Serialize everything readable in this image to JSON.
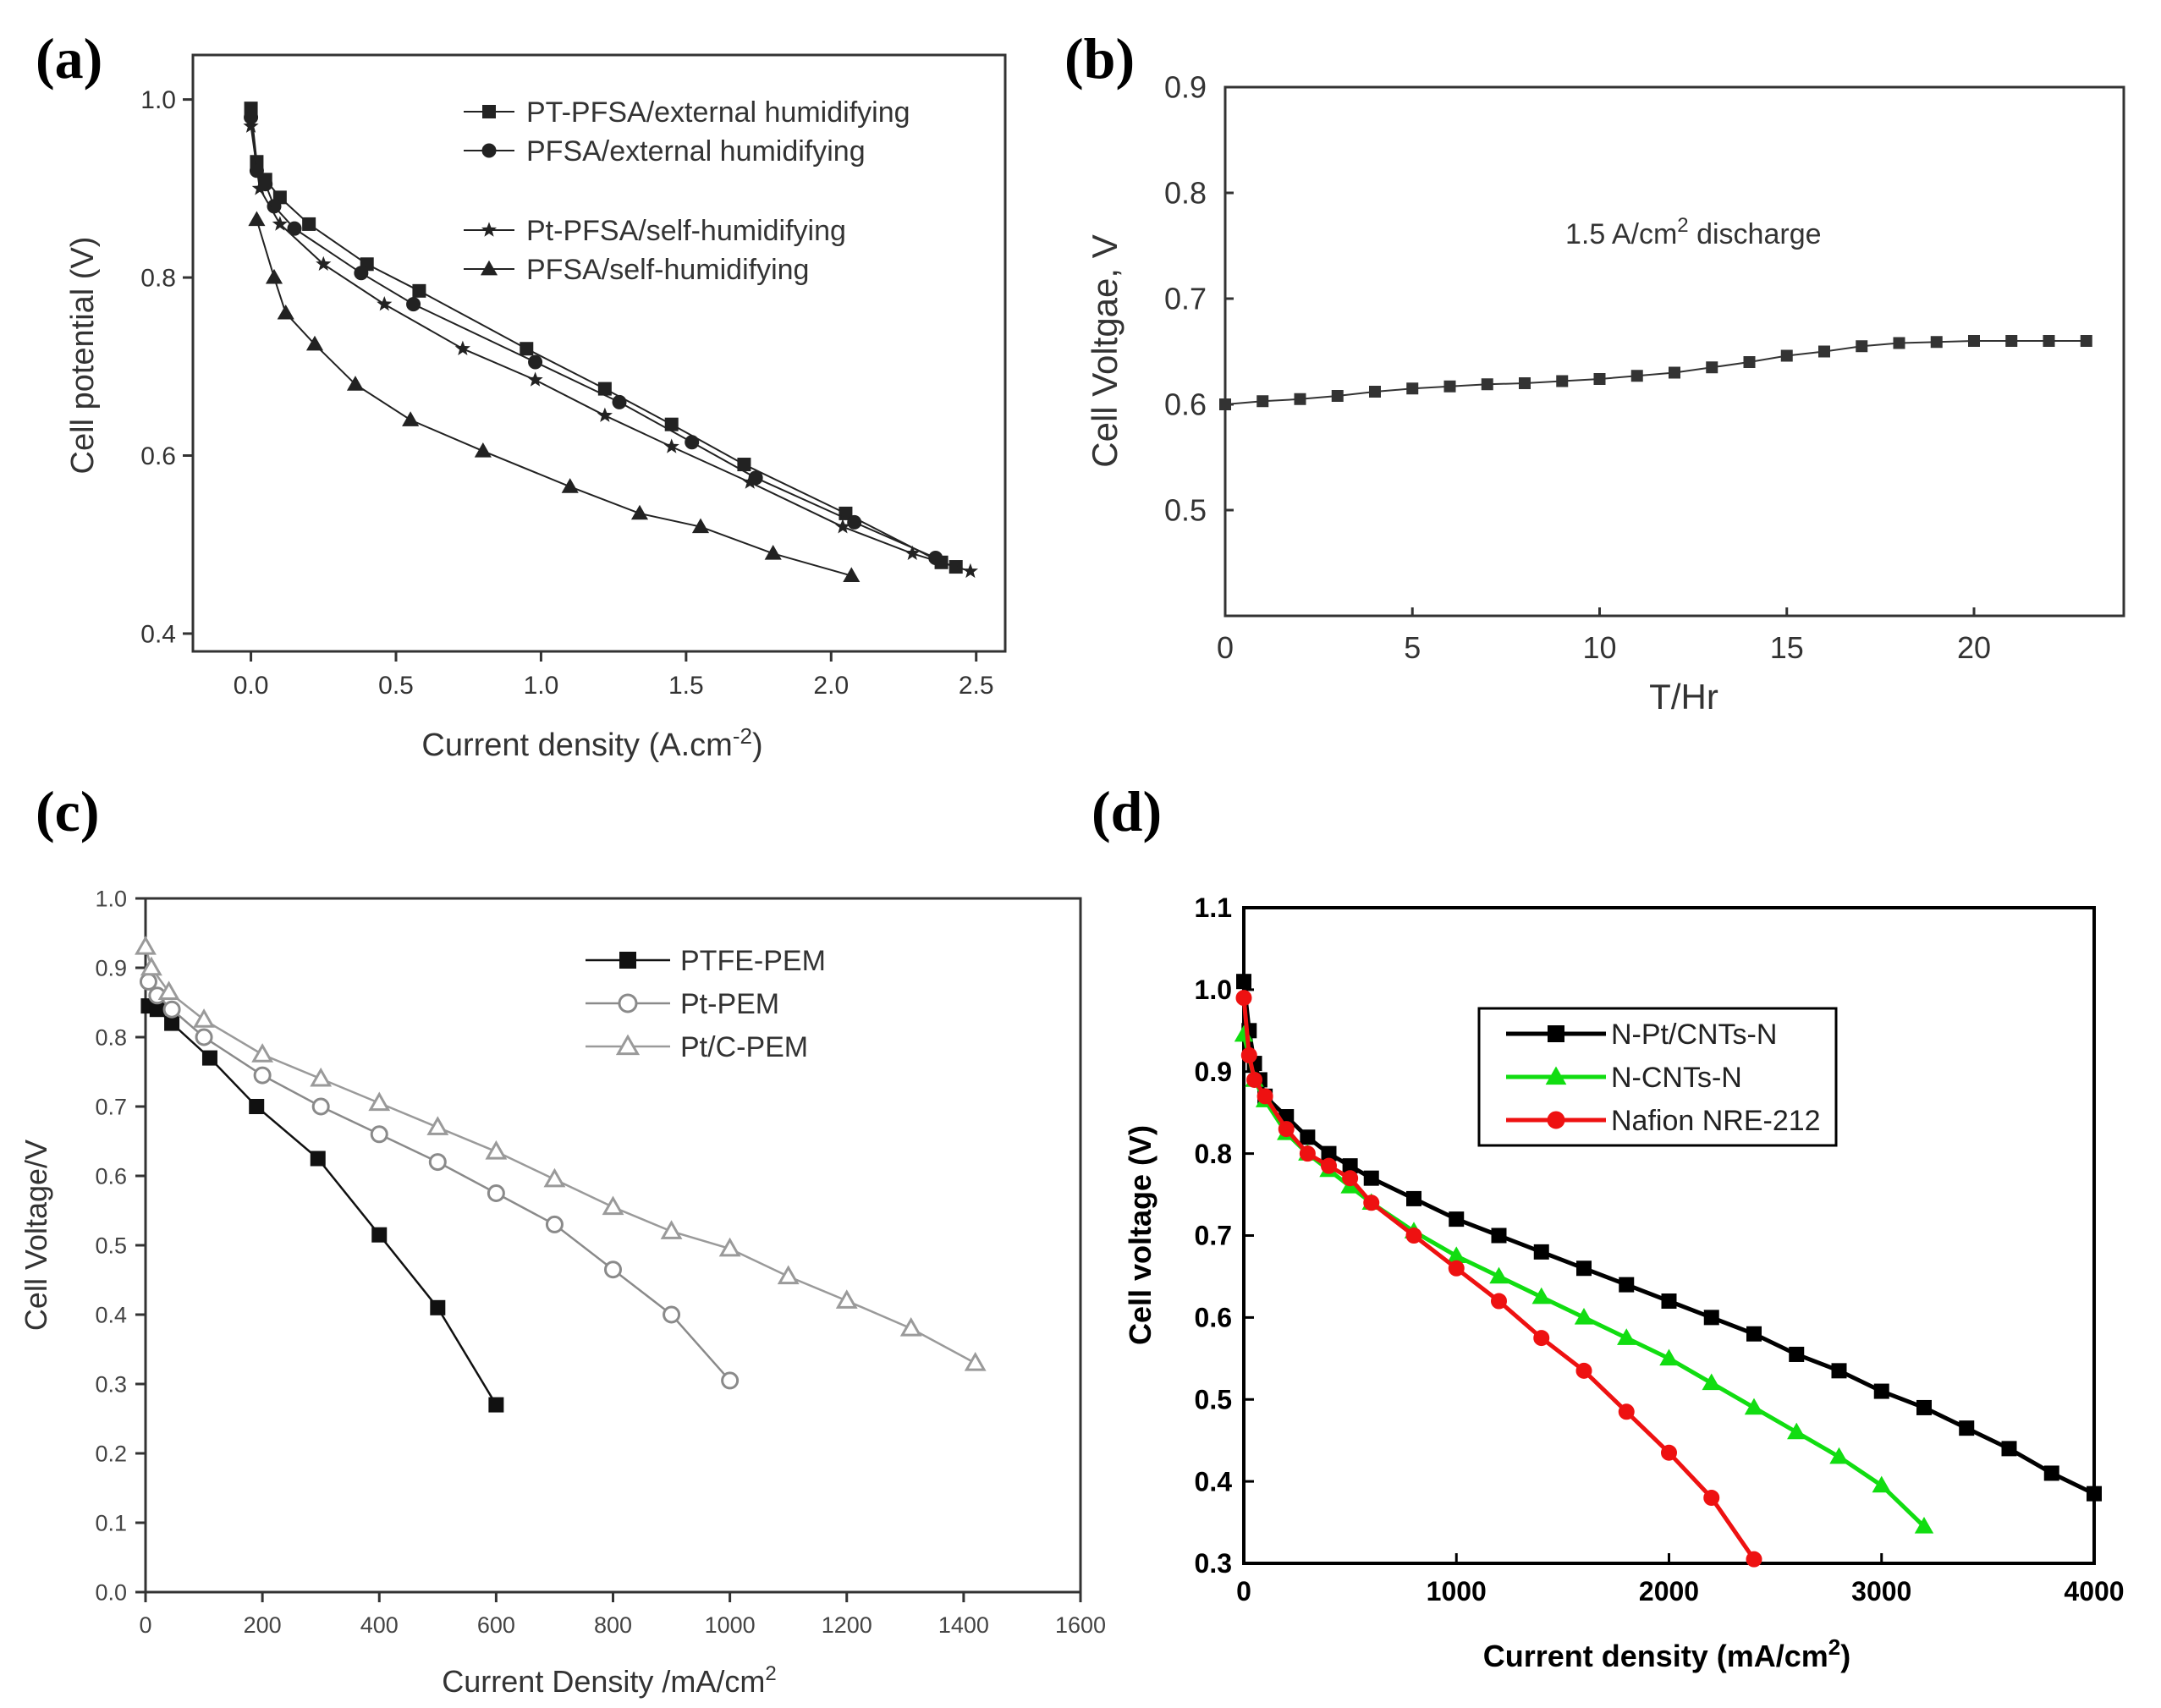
{
  "chart_data": [
    {
      "panel_label": "(a)",
      "type": "line",
      "title": "",
      "xlabel": "Current density (A.cm",
      "xlabel_sup": "-2",
      "xlabel_end": ")",
      "ylabel": "Cell potential (V)",
      "xlim": [
        -0.2,
        2.6
      ],
      "ylim": [
        0.38,
        1.05
      ],
      "xticks": [
        0.0,
        0.5,
        1.0,
        1.5,
        2.0,
        2.5
      ],
      "xtick_labels": [
        "0.0",
        "0.5",
        "1.0",
        "1.5",
        "2.0",
        "2.5"
      ],
      "yticks": [
        0.4,
        0.6,
        0.8,
        1.0
      ],
      "ytick_labels": [
        "0.4",
        "0.6",
        "0.8",
        "1.0"
      ],
      "legend_position": "top-right",
      "series": [
        {
          "name": "PT-PFSA/external humidifying",
          "marker": "square",
          "color": "#222222",
          "x": [
            0.0,
            0.02,
            0.05,
            0.1,
            0.2,
            0.4,
            0.58,
            0.95,
            1.22,
            1.45,
            1.7,
            2.05,
            2.38,
            2.43
          ],
          "y": [
            0.99,
            0.93,
            0.91,
            0.89,
            0.86,
            0.815,
            0.785,
            0.72,
            0.675,
            0.635,
            0.59,
            0.535,
            0.48,
            0.475
          ]
        },
        {
          "name": "PFSA/external humidifying",
          "marker": "circle",
          "color": "#222222",
          "x": [
            0.0,
            0.02,
            0.05,
            0.08,
            0.15,
            0.38,
            0.56,
            0.98,
            1.27,
            1.52,
            1.74,
            2.08,
            2.36
          ],
          "y": [
            0.98,
            0.92,
            0.905,
            0.88,
            0.855,
            0.805,
            0.77,
            0.705,
            0.66,
            0.615,
            0.575,
            0.525,
            0.485
          ]
        },
        {
          "name": "Pt-PFSA/self-humidifying",
          "marker": "star",
          "color": "#222222",
          "x": [
            0.0,
            0.03,
            0.1,
            0.25,
            0.46,
            0.73,
            0.98,
            1.22,
            1.45,
            1.72,
            2.04,
            2.28,
            2.48
          ],
          "y": [
            0.97,
            0.9,
            0.86,
            0.815,
            0.77,
            0.72,
            0.685,
            0.645,
            0.61,
            0.57,
            0.52,
            0.49,
            0.47
          ]
        },
        {
          "name": "PFSA/self-humidifying",
          "marker": "triangle",
          "color": "#222222",
          "x": [
            0.02,
            0.08,
            0.12,
            0.22,
            0.36,
            0.55,
            0.8,
            1.1,
            1.34,
            1.55,
            1.8,
            2.07
          ],
          "y": [
            0.865,
            0.8,
            0.76,
            0.725,
            0.68,
            0.64,
            0.605,
            0.565,
            0.535,
            0.52,
            0.49,
            0.465
          ]
        }
      ]
    },
    {
      "panel_label": "(b)",
      "type": "line",
      "title": "",
      "annotation_text": "1.5 A/cm",
      "annotation_sup": "2",
      "annotation_end": "  discharge",
      "xlabel": "T/Hr",
      "ylabel": "Cell Voltgae, V",
      "xlim": [
        0,
        24
      ],
      "ylim": [
        0.4,
        0.9
      ],
      "xticks": [
        0,
        5,
        10,
        15,
        20
      ],
      "xtick_labels": [
        "0",
        "5",
        "10",
        "15",
        "20"
      ],
      "yticks": [
        0.5,
        0.6,
        0.7,
        0.8,
        0.9
      ],
      "ytick_labels": [
        "0.5",
        "0.6",
        "0.7",
        "0.8",
        "0.9"
      ],
      "series": [
        {
          "name": "discharge",
          "marker": "square",
          "color": "#333333",
          "x": [
            0,
            1,
            2,
            3,
            4,
            5,
            6,
            7,
            8,
            9,
            10,
            11,
            12,
            13,
            14,
            15,
            16,
            17,
            18,
            19,
            20,
            21,
            22,
            23
          ],
          "y": [
            0.6,
            0.603,
            0.605,
            0.608,
            0.612,
            0.615,
            0.617,
            0.619,
            0.62,
            0.622,
            0.624,
            0.627,
            0.63,
            0.635,
            0.64,
            0.646,
            0.65,
            0.655,
            0.658,
            0.659,
            0.66,
            0.66,
            0.66,
            0.66
          ]
        }
      ]
    },
    {
      "panel_label": "(c)",
      "type": "line",
      "title": "",
      "xlabel": "Current Density /mA/cm",
      "xlabel_sup": "2",
      "ylabel": "Cell Voltage/V",
      "xlim": [
        0,
        1600
      ],
      "ylim": [
        0.0,
        1.0
      ],
      "xticks": [
        0,
        200,
        400,
        600,
        800,
        1000,
        1200,
        1400,
        1600
      ],
      "xtick_labels": [
        "0",
        "200",
        "400",
        "600",
        "800",
        "1000",
        "1200",
        "1400",
        "1600"
      ],
      "yticks": [
        0.0,
        0.1,
        0.2,
        0.3,
        0.4,
        0.5,
        0.6,
        0.7,
        0.8,
        0.9,
        1.0
      ],
      "ytick_labels": [
        "0.0",
        "0.1",
        "0.2",
        "0.3",
        "0.4",
        "0.5",
        "0.6",
        "0.7",
        "0.8",
        "0.9",
        "1.0"
      ],
      "legend_position": "top-right",
      "series": [
        {
          "name": "PTFE-PEM",
          "marker": "square-filled",
          "color": "#111111",
          "x": [
            5,
            20,
            45,
            110,
            190,
            295,
            400,
            500,
            600
          ],
          "y": [
            0.845,
            0.84,
            0.82,
            0.77,
            0.7,
            0.625,
            0.515,
            0.41,
            0.27
          ]
        },
        {
          "name": "Pt-PEM",
          "marker": "circle-open",
          "color": "#8a8a8a",
          "x": [
            5,
            20,
            45,
            100,
            200,
            300,
            400,
            500,
            600,
            700,
            800,
            900,
            1000
          ],
          "y": [
            0.88,
            0.86,
            0.84,
            0.8,
            0.745,
            0.7,
            0.66,
            0.62,
            0.575,
            0.53,
            0.465,
            0.4,
            0.305
          ]
        },
        {
          "name": "Pt/C-PEM",
          "marker": "triangle-open",
          "color": "#9a9a9a",
          "x": [
            0,
            10,
            40,
            100,
            200,
            300,
            400,
            500,
            600,
            700,
            800,
            900,
            1000,
            1100,
            1200,
            1310,
            1420
          ],
          "y": [
            0.93,
            0.9,
            0.865,
            0.825,
            0.775,
            0.74,
            0.705,
            0.67,
            0.635,
            0.595,
            0.555,
            0.52,
            0.495,
            0.455,
            0.42,
            0.38,
            0.33
          ]
        }
      ]
    },
    {
      "panel_label": "(d)",
      "type": "line",
      "title": "",
      "xlabel": "Current density (mA/cm",
      "xlabel_sup": "2",
      "xlabel_end": ")",
      "ylabel": "Cell voltage (V)",
      "xlim": [
        0,
        4000
      ],
      "ylim": [
        0.3,
        1.1
      ],
      "xticks": [
        0,
        1000,
        2000,
        3000,
        4000
      ],
      "xtick_labels": [
        "0",
        "1000",
        "2000",
        "3000",
        "4000"
      ],
      "yticks": [
        0.3,
        0.4,
        0.5,
        0.6,
        0.7,
        0.8,
        0.9,
        1.0,
        1.1
      ],
      "ytick_labels": [
        "0.3",
        "0.4",
        "0.5",
        "0.6",
        "0.7",
        "0.8",
        "0.9",
        "1.0",
        "1.1"
      ],
      "legend_position": "upper-left",
      "series": [
        {
          "name": "N-Pt/CNTs-N",
          "marker": "square-filled",
          "color": "#000000",
          "x": [
            0,
            25,
            50,
            75,
            100,
            200,
            300,
            400,
            500,
            600,
            800,
            1000,
            1200,
            1400,
            1600,
            1800,
            2000,
            2200,
            2400,
            2600,
            2800,
            3000,
            3200,
            3400,
            3600,
            3800,
            4000
          ],
          "y": [
            1.01,
            0.95,
            0.91,
            0.89,
            0.87,
            0.845,
            0.82,
            0.8,
            0.785,
            0.77,
            0.745,
            0.72,
            0.7,
            0.68,
            0.66,
            0.64,
            0.62,
            0.6,
            0.58,
            0.555,
            0.535,
            0.51,
            0.49,
            0.465,
            0.44,
            0.41,
            0.385
          ]
        },
        {
          "name": "N-CNTs-N",
          "marker": "triangle-filled",
          "color": "#11dd11",
          "x": [
            0,
            50,
            100,
            200,
            300,
            400,
            500,
            600,
            800,
            1000,
            1200,
            1400,
            1600,
            1800,
            2000,
            2200,
            2400,
            2600,
            2800,
            3000,
            3200
          ],
          "y": [
            0.945,
            0.89,
            0.865,
            0.825,
            0.8,
            0.78,
            0.76,
            0.74,
            0.705,
            0.675,
            0.65,
            0.625,
            0.6,
            0.575,
            0.55,
            0.52,
            0.49,
            0.46,
            0.43,
            0.395,
            0.345
          ]
        },
        {
          "name": "Nafion NRE-212",
          "marker": "circle-filled",
          "color": "#ee1111",
          "x": [
            0,
            25,
            50,
            100,
            200,
            300,
            400,
            500,
            600,
            800,
            1000,
            1200,
            1400,
            1600,
            1800,
            2000,
            2200,
            2400
          ],
          "y": [
            0.99,
            0.92,
            0.89,
            0.87,
            0.83,
            0.8,
            0.785,
            0.77,
            0.74,
            0.7,
            0.66,
            0.62,
            0.575,
            0.535,
            0.485,
            0.435,
            0.38,
            0.305
          ]
        }
      ]
    }
  ]
}
